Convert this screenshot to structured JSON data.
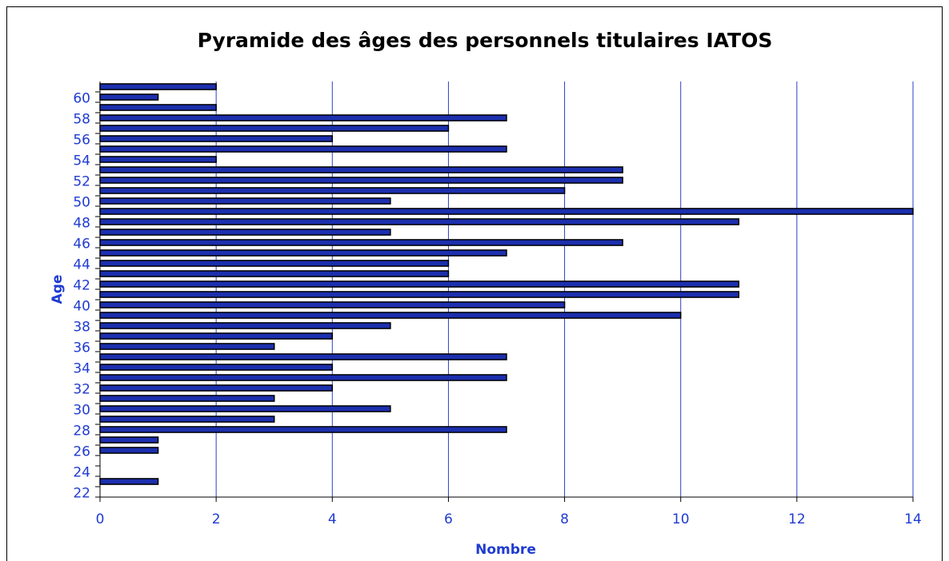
{
  "chart_data": {
    "type": "barh",
    "title": "Pyramide des âges des personnels titulaires IATOS",
    "x_label": "Nombre",
    "y_label": "Age",
    "categories": [
      "22",
      null,
      "24",
      null,
      "26",
      null,
      "28",
      null,
      "30",
      null,
      "32",
      null,
      "34",
      null,
      "36",
      null,
      "38",
      null,
      "40",
      null,
      "42",
      null,
      "44",
      null,
      "46",
      null,
      "48",
      null,
      "50",
      null,
      "52",
      null,
      "54",
      null,
      "56",
      null,
      "58",
      null,
      "60",
      null
    ],
    "values": [
      0,
      1,
      0,
      0,
      1,
      1,
      7,
      3,
      5,
      3,
      4,
      7,
      4,
      7,
      3,
      4,
      5,
      10,
      8,
      11,
      11,
      6,
      6,
      7,
      9,
      5,
      11,
      14,
      5,
      8,
      9,
      9,
      2,
      7,
      4,
      6,
      7,
      2,
      1,
      2
    ],
    "color": "#1c2fae",
    "grid_color": "#2b3fc8",
    "xlim": [
      0,
      14
    ],
    "xticks": [
      0,
      2,
      4,
      6,
      8,
      10,
      12,
      14
    ],
    "grid": true
  }
}
